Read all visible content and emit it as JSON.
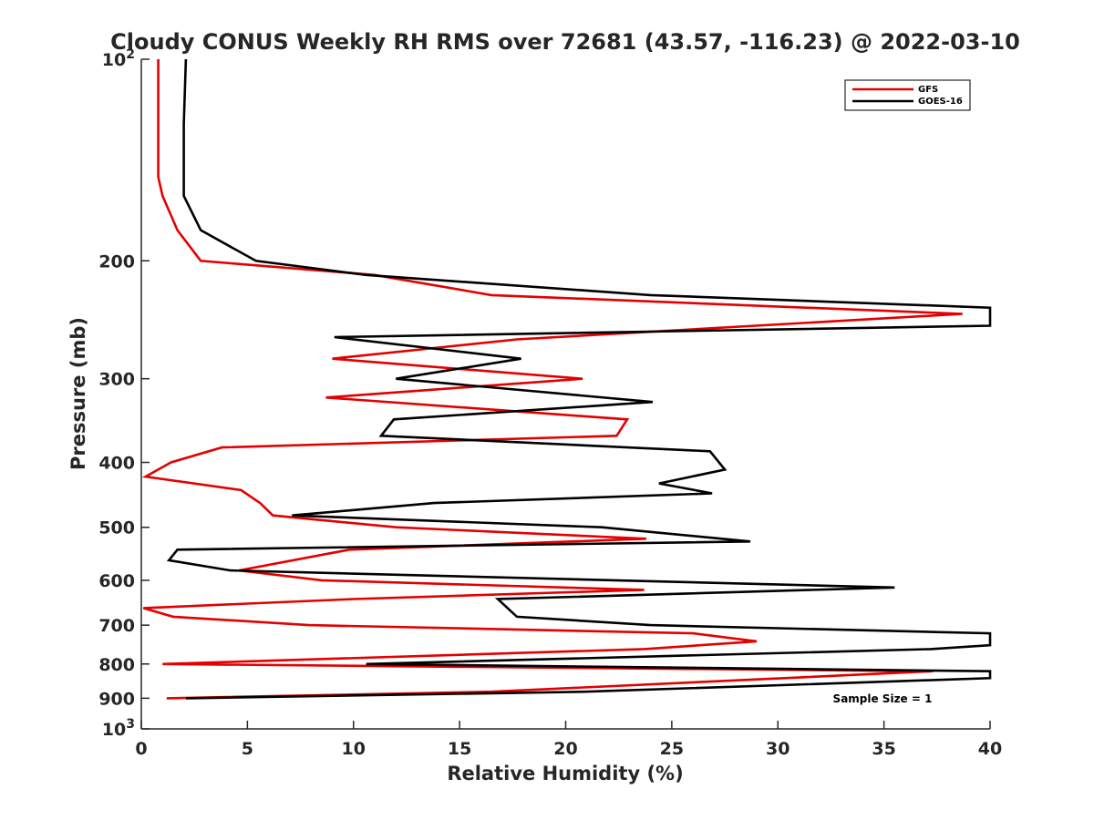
{
  "chart_data": {
    "type": "line",
    "title": "Cloudy CONUS Weekly RH RMS over 72681 (43.57, -116.23) @ 2022-03-10",
    "xlabel": "Relative Humidity (%)",
    "ylabel": "Pressure (mb)",
    "xlim": [
      0,
      40
    ],
    "ylim": [
      100,
      1000
    ],
    "yscale": "log",
    "y_reversed": true,
    "x_ticks": [
      "0",
      "5",
      "10",
      "15",
      "20",
      "25",
      "30",
      "35",
      "40"
    ],
    "y_ticks": [
      {
        "value": 100,
        "label": "10",
        "sup": "2"
      },
      {
        "value": 200,
        "label": "200",
        "sup": ""
      },
      {
        "value": 300,
        "label": "300",
        "sup": ""
      },
      {
        "value": 400,
        "label": "400",
        "sup": ""
      },
      {
        "value": 500,
        "label": "500",
        "sup": ""
      },
      {
        "value": 600,
        "label": "600",
        "sup": ""
      },
      {
        "value": 700,
        "label": "700",
        "sup": ""
      },
      {
        "value": 800,
        "label": "800",
        "sup": ""
      },
      {
        "value": 900,
        "label": "900",
        "sup": ""
      },
      {
        "value": 1000,
        "label": "10",
        "sup": "3"
      }
    ],
    "legend_position": "top-right",
    "series": [
      {
        "name": "GFS",
        "color": "#e30000",
        "points": [
          [
            0.8,
            100
          ],
          [
            0.8,
            125
          ],
          [
            0.8,
            150
          ],
          [
            1.0,
            160
          ],
          [
            1.7,
            180
          ],
          [
            2.8,
            200
          ],
          [
            11.0,
            210
          ],
          [
            16.5,
            225
          ],
          [
            38.7,
            240
          ],
          [
            17.7,
            262
          ],
          [
            9.0,
            280
          ],
          [
            20.8,
            300
          ],
          [
            8.7,
            320
          ],
          [
            22.9,
            345
          ],
          [
            22.4,
            365
          ],
          [
            3.8,
            380
          ],
          [
            1.4,
            400
          ],
          [
            0.2,
            420
          ],
          [
            4.7,
            440
          ],
          [
            5.6,
            460
          ],
          [
            6.2,
            480
          ],
          [
            12.0,
            500
          ],
          [
            23.8,
            520
          ],
          [
            9.8,
            540
          ],
          [
            4.6,
            580
          ],
          [
            8.5,
            600
          ],
          [
            23.7,
            620
          ],
          [
            10.0,
            640
          ],
          [
            0.1,
            660
          ],
          [
            1.5,
            680
          ],
          [
            7.9,
            700
          ],
          [
            26.0,
            720
          ],
          [
            29.0,
            740
          ],
          [
            23.7,
            760
          ],
          [
            1.0,
            800
          ],
          [
            37.3,
            820
          ],
          [
            16.5,
            880
          ],
          [
            1.2,
            900
          ]
        ]
      },
      {
        "name": "GOES-16",
        "color": "#000000",
        "points": [
          [
            2.1,
            100
          ],
          [
            2.0,
            125
          ],
          [
            2.0,
            150
          ],
          [
            2.0,
            160
          ],
          [
            2.8,
            180
          ],
          [
            5.4,
            200
          ],
          [
            10.6,
            210
          ],
          [
            24.0,
            225
          ],
          [
            40.0,
            235
          ],
          [
            40.0,
            250
          ],
          [
            9.1,
            260
          ],
          [
            17.9,
            280
          ],
          [
            12.0,
            300
          ],
          [
            24.1,
            325
          ],
          [
            11.9,
            345
          ],
          [
            11.3,
            365
          ],
          [
            26.8,
            385
          ],
          [
            27.5,
            410
          ],
          [
            24.4,
            430
          ],
          [
            26.9,
            445
          ],
          [
            13.8,
            460
          ],
          [
            7.1,
            480
          ],
          [
            21.7,
            500
          ],
          [
            28.7,
            525
          ],
          [
            1.7,
            540
          ],
          [
            1.3,
            560
          ],
          [
            4.2,
            580
          ],
          [
            35.5,
            615
          ],
          [
            16.8,
            640
          ],
          [
            17.7,
            680
          ],
          [
            24.0,
            700
          ],
          [
            40.0,
            720
          ],
          [
            40.0,
            750
          ],
          [
            37.2,
            760
          ],
          [
            10.6,
            800
          ],
          [
            40.0,
            820
          ],
          [
            40.0,
            840
          ],
          [
            20.9,
            880
          ],
          [
            2.1,
            900
          ]
        ]
      }
    ],
    "annotation": "Sample Size = 1"
  }
}
